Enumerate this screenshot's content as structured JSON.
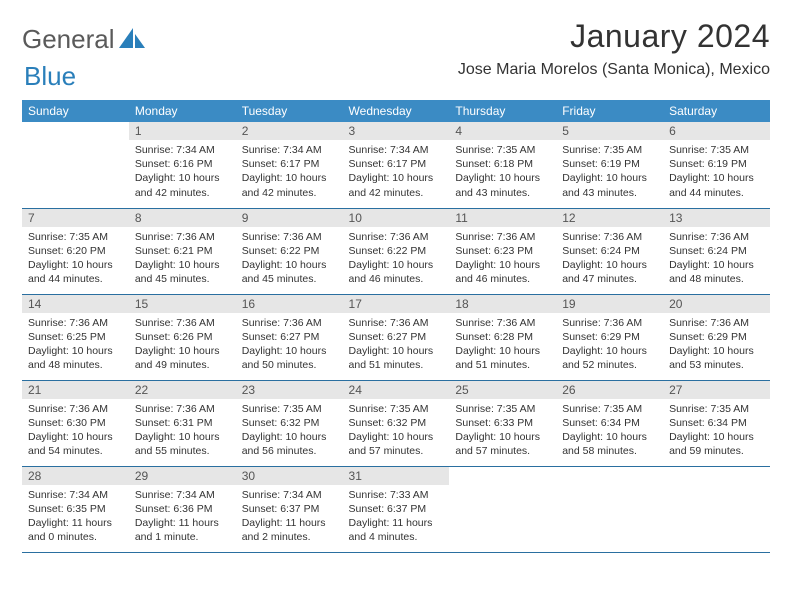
{
  "logo": {
    "word1": "General",
    "word2": "Blue"
  },
  "header": {
    "month_title": "January 2024",
    "location": "Jose Maria Morelos (Santa Monica), Mexico"
  },
  "colors": {
    "header_bg": "#3b8bc4",
    "header_text": "#ffffff",
    "daynum_bg": "#e6e6e6",
    "row_border": "#2a6fa0",
    "logo_blue": "#2a7fba",
    "logo_gray": "#5a5a5a"
  },
  "weekdays": [
    "Sunday",
    "Monday",
    "Tuesday",
    "Wednesday",
    "Thursday",
    "Friday",
    "Saturday"
  ],
  "weeks": [
    [
      {
        "empty": true
      },
      {
        "day": "1",
        "sunrise": "Sunrise: 7:34 AM",
        "sunset": "Sunset: 6:16 PM",
        "daylight": "Daylight: 10 hours and 42 minutes."
      },
      {
        "day": "2",
        "sunrise": "Sunrise: 7:34 AM",
        "sunset": "Sunset: 6:17 PM",
        "daylight": "Daylight: 10 hours and 42 minutes."
      },
      {
        "day": "3",
        "sunrise": "Sunrise: 7:34 AM",
        "sunset": "Sunset: 6:17 PM",
        "daylight": "Daylight: 10 hours and 42 minutes."
      },
      {
        "day": "4",
        "sunrise": "Sunrise: 7:35 AM",
        "sunset": "Sunset: 6:18 PM",
        "daylight": "Daylight: 10 hours and 43 minutes."
      },
      {
        "day": "5",
        "sunrise": "Sunrise: 7:35 AM",
        "sunset": "Sunset: 6:19 PM",
        "daylight": "Daylight: 10 hours and 43 minutes."
      },
      {
        "day": "6",
        "sunrise": "Sunrise: 7:35 AM",
        "sunset": "Sunset: 6:19 PM",
        "daylight": "Daylight: 10 hours and 44 minutes."
      }
    ],
    [
      {
        "day": "7",
        "sunrise": "Sunrise: 7:35 AM",
        "sunset": "Sunset: 6:20 PM",
        "daylight": "Daylight: 10 hours and 44 minutes."
      },
      {
        "day": "8",
        "sunrise": "Sunrise: 7:36 AM",
        "sunset": "Sunset: 6:21 PM",
        "daylight": "Daylight: 10 hours and 45 minutes."
      },
      {
        "day": "9",
        "sunrise": "Sunrise: 7:36 AM",
        "sunset": "Sunset: 6:22 PM",
        "daylight": "Daylight: 10 hours and 45 minutes."
      },
      {
        "day": "10",
        "sunrise": "Sunrise: 7:36 AM",
        "sunset": "Sunset: 6:22 PM",
        "daylight": "Daylight: 10 hours and 46 minutes."
      },
      {
        "day": "11",
        "sunrise": "Sunrise: 7:36 AM",
        "sunset": "Sunset: 6:23 PM",
        "daylight": "Daylight: 10 hours and 46 minutes."
      },
      {
        "day": "12",
        "sunrise": "Sunrise: 7:36 AM",
        "sunset": "Sunset: 6:24 PM",
        "daylight": "Daylight: 10 hours and 47 minutes."
      },
      {
        "day": "13",
        "sunrise": "Sunrise: 7:36 AM",
        "sunset": "Sunset: 6:24 PM",
        "daylight": "Daylight: 10 hours and 48 minutes."
      }
    ],
    [
      {
        "day": "14",
        "sunrise": "Sunrise: 7:36 AM",
        "sunset": "Sunset: 6:25 PM",
        "daylight": "Daylight: 10 hours and 48 minutes."
      },
      {
        "day": "15",
        "sunrise": "Sunrise: 7:36 AM",
        "sunset": "Sunset: 6:26 PM",
        "daylight": "Daylight: 10 hours and 49 minutes."
      },
      {
        "day": "16",
        "sunrise": "Sunrise: 7:36 AM",
        "sunset": "Sunset: 6:27 PM",
        "daylight": "Daylight: 10 hours and 50 minutes."
      },
      {
        "day": "17",
        "sunrise": "Sunrise: 7:36 AM",
        "sunset": "Sunset: 6:27 PM",
        "daylight": "Daylight: 10 hours and 51 minutes."
      },
      {
        "day": "18",
        "sunrise": "Sunrise: 7:36 AM",
        "sunset": "Sunset: 6:28 PM",
        "daylight": "Daylight: 10 hours and 51 minutes."
      },
      {
        "day": "19",
        "sunrise": "Sunrise: 7:36 AM",
        "sunset": "Sunset: 6:29 PM",
        "daylight": "Daylight: 10 hours and 52 minutes."
      },
      {
        "day": "20",
        "sunrise": "Sunrise: 7:36 AM",
        "sunset": "Sunset: 6:29 PM",
        "daylight": "Daylight: 10 hours and 53 minutes."
      }
    ],
    [
      {
        "day": "21",
        "sunrise": "Sunrise: 7:36 AM",
        "sunset": "Sunset: 6:30 PM",
        "daylight": "Daylight: 10 hours and 54 minutes."
      },
      {
        "day": "22",
        "sunrise": "Sunrise: 7:36 AM",
        "sunset": "Sunset: 6:31 PM",
        "daylight": "Daylight: 10 hours and 55 minutes."
      },
      {
        "day": "23",
        "sunrise": "Sunrise: 7:35 AM",
        "sunset": "Sunset: 6:32 PM",
        "daylight": "Daylight: 10 hours and 56 minutes."
      },
      {
        "day": "24",
        "sunrise": "Sunrise: 7:35 AM",
        "sunset": "Sunset: 6:32 PM",
        "daylight": "Daylight: 10 hours and 57 minutes."
      },
      {
        "day": "25",
        "sunrise": "Sunrise: 7:35 AM",
        "sunset": "Sunset: 6:33 PM",
        "daylight": "Daylight: 10 hours and 57 minutes."
      },
      {
        "day": "26",
        "sunrise": "Sunrise: 7:35 AM",
        "sunset": "Sunset: 6:34 PM",
        "daylight": "Daylight: 10 hours and 58 minutes."
      },
      {
        "day": "27",
        "sunrise": "Sunrise: 7:35 AM",
        "sunset": "Sunset: 6:34 PM",
        "daylight": "Daylight: 10 hours and 59 minutes."
      }
    ],
    [
      {
        "day": "28",
        "sunrise": "Sunrise: 7:34 AM",
        "sunset": "Sunset: 6:35 PM",
        "daylight": "Daylight: 11 hours and 0 minutes."
      },
      {
        "day": "29",
        "sunrise": "Sunrise: 7:34 AM",
        "sunset": "Sunset: 6:36 PM",
        "daylight": "Daylight: 11 hours and 1 minute."
      },
      {
        "day": "30",
        "sunrise": "Sunrise: 7:34 AM",
        "sunset": "Sunset: 6:37 PM",
        "daylight": "Daylight: 11 hours and 2 minutes."
      },
      {
        "day": "31",
        "sunrise": "Sunrise: 7:33 AM",
        "sunset": "Sunset: 6:37 PM",
        "daylight": "Daylight: 11 hours and 4 minutes."
      },
      {
        "empty": true
      },
      {
        "empty": true
      },
      {
        "empty": true
      }
    ]
  ]
}
